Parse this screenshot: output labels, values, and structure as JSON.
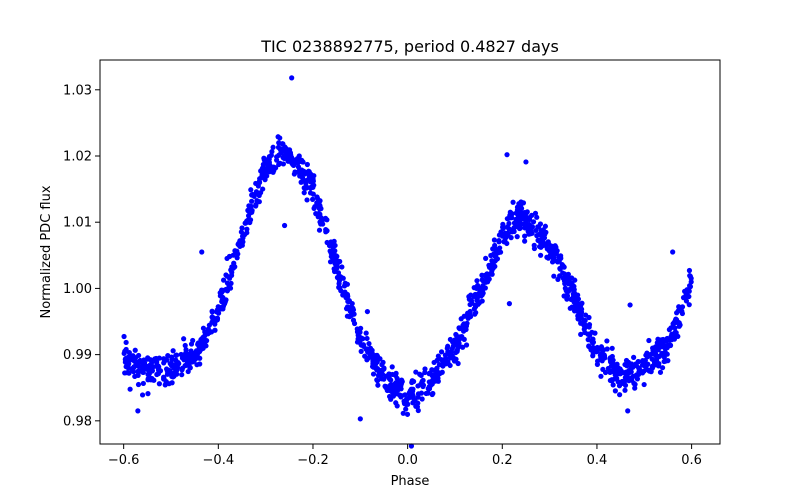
{
  "chart_data": {
    "type": "scatter",
    "title": "TIC 0238892775, period 0.4827 days",
    "xlabel": "Phase",
    "ylabel": "Normalized PDC flux",
    "xlim": [
      -0.65,
      0.66
    ],
    "ylim": [
      0.9765,
      1.0345
    ],
    "xticks": [
      -0.6,
      -0.4,
      -0.2,
      0.0,
      0.2,
      0.4,
      0.6
    ],
    "xtick_labels": [
      "−0.6",
      "−0.4",
      "−0.2",
      "0.0",
      "0.2",
      "0.4",
      "0.6"
    ],
    "yticks": [
      0.98,
      0.99,
      1.0,
      1.01,
      1.02,
      1.03
    ],
    "ytick_labels": [
      "0.98",
      "0.99",
      "1.00",
      "1.01",
      "1.02",
      "1.03"
    ],
    "grid": false,
    "marker_color": "#0000ff",
    "x_range": [
      -0.6,
      0.6
    ],
    "light_curve": {
      "x": [
        -0.6,
        -0.55,
        -0.5,
        -0.45,
        -0.4,
        -0.35,
        -0.3,
        -0.27,
        -0.25,
        -0.2,
        -0.15,
        -0.1,
        -0.05,
        0.0,
        0.05,
        0.1,
        0.15,
        0.2,
        0.23,
        0.25,
        0.3,
        0.35,
        0.4,
        0.45,
        0.5,
        0.55,
        0.6
      ],
      "y": [
        0.9895,
        0.9875,
        0.9878,
        0.9895,
        0.9965,
        1.008,
        1.018,
        1.0205,
        1.02,
        1.015,
        1.003,
        0.992,
        0.9865,
        0.9835,
        0.986,
        0.991,
        0.999,
        1.008,
        1.011,
        1.0105,
        1.006,
        0.999,
        0.99,
        0.987,
        0.988,
        0.9915,
        1.001
      ],
      "scatter_sigma": 0.0012
    },
    "outliers": [
      {
        "x": -0.245,
        "y": 1.0318
      },
      {
        "x": -0.57,
        "y": 0.9815
      },
      {
        "x": -0.1,
        "y": 0.9803
      },
      {
        "x": 0.008,
        "y": 0.9762
      },
      {
        "x": 0.21,
        "y": 1.0202
      },
      {
        "x": 0.25,
        "y": 1.0191
      },
      {
        "x": 0.215,
        "y": 0.9977
      },
      {
        "x": -0.435,
        "y": 1.0055
      },
      {
        "x": 0.56,
        "y": 1.0055
      },
      {
        "x": 0.14,
        "y": 0.9988
      },
      {
        "x": -0.26,
        "y": 1.0095
      },
      {
        "x": -0.085,
        "y": 0.9965
      },
      {
        "x": 0.465,
        "y": 0.9815
      },
      {
        "x": 0.47,
        "y": 0.9975
      }
    ]
  }
}
